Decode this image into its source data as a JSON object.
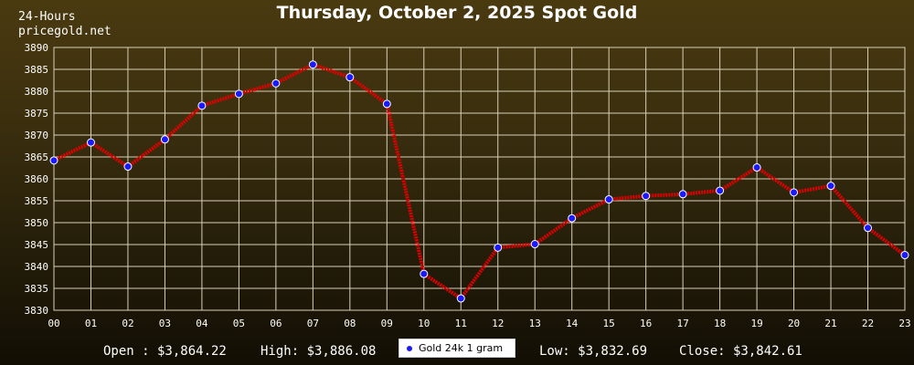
{
  "header": {
    "label_24h": "24-Hours",
    "site": "pricegold.net",
    "title": "Thursday, October 2, 2025 Spot Gold"
  },
  "footer": {
    "open": "Open : $3,864.22",
    "high": "High: $3,886.08",
    "low": "Low: $3,832.69",
    "close": "Close: $3,842.61"
  },
  "legend": {
    "label": "Gold 24k 1 gram"
  },
  "colors": {
    "line": "#e00000",
    "marker": "#1a1aff",
    "grid": "#d8d0b8",
    "background_top": "#4a3a10",
    "background_bottom": "#120e04"
  },
  "chart_data": {
    "type": "line",
    "title": "Thursday, October 2, 2025 Spot Gold",
    "x": [
      "00",
      "01",
      "02",
      "03",
      "04",
      "05",
      "06",
      "07",
      "08",
      "09",
      "10",
      "11",
      "12",
      "13",
      "14",
      "15",
      "16",
      "17",
      "18",
      "19",
      "20",
      "21",
      "22",
      "23"
    ],
    "ylim": [
      3830,
      3890
    ],
    "yticks": [
      3830,
      3835,
      3840,
      3845,
      3850,
      3855,
      3860,
      3865,
      3870,
      3875,
      3880,
      3885,
      3890
    ],
    "grid": true,
    "legend_position": "bottom-center",
    "series": [
      {
        "name": "Gold 24k 1 gram",
        "values": [
          3864.2,
          3868.3,
          3862.8,
          3869.0,
          3876.7,
          3879.4,
          3881.8,
          3886.1,
          3883.2,
          3877.1,
          3838.3,
          3832.7,
          3844.3,
          3845.1,
          3851.0,
          3855.3,
          3856.1,
          3856.5,
          3857.3,
          3862.6,
          3856.9,
          3858.4,
          3848.8,
          3842.6
        ]
      }
    ]
  }
}
